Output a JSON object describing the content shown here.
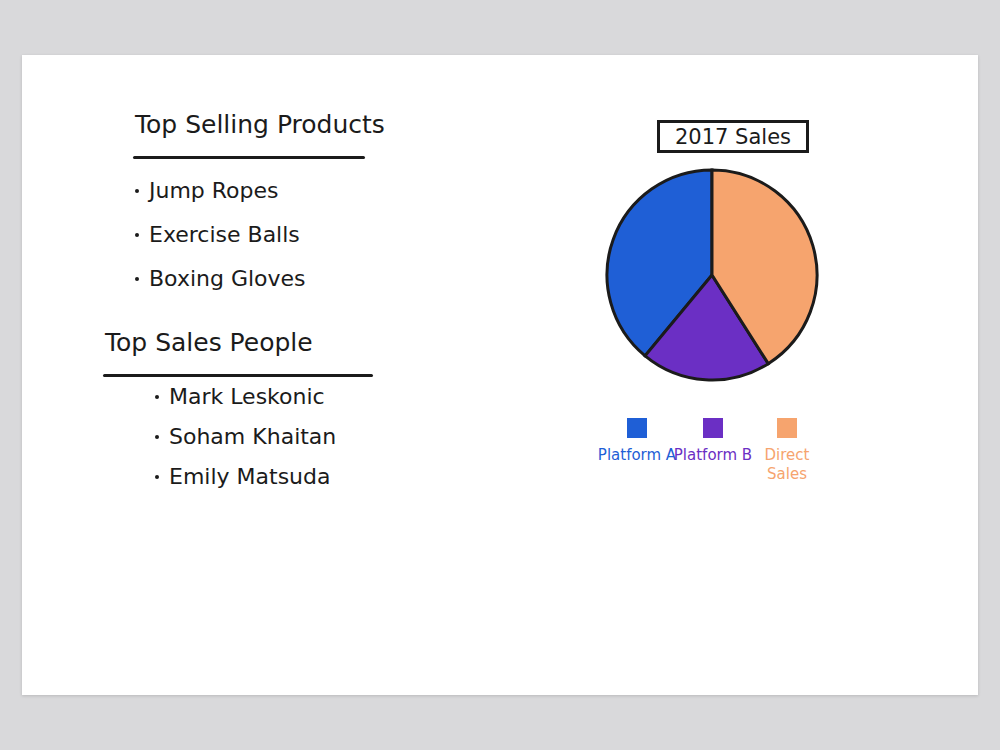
{
  "chart_data": {
    "type": "pie",
    "title": "2017 Sales",
    "categories": [
      "Platform A",
      "Platform B",
      "Direct Sales"
    ],
    "values": [
      39,
      20,
      41
    ],
    "colors": [
      "#1f5fd6",
      "#6b2fc4",
      "#f6a46e"
    ],
    "legend": "bottom"
  },
  "lists": [
    {
      "title": "Top Selling Products",
      "items": [
        "Jump Ropes",
        "Exercise Balls",
        "Boxing Gloves"
      ]
    },
    {
      "title": "Top Sales People",
      "items": [
        "Mark Leskonic",
        "Soham Khaitan",
        "Emily Matsuda"
      ]
    }
  ]
}
